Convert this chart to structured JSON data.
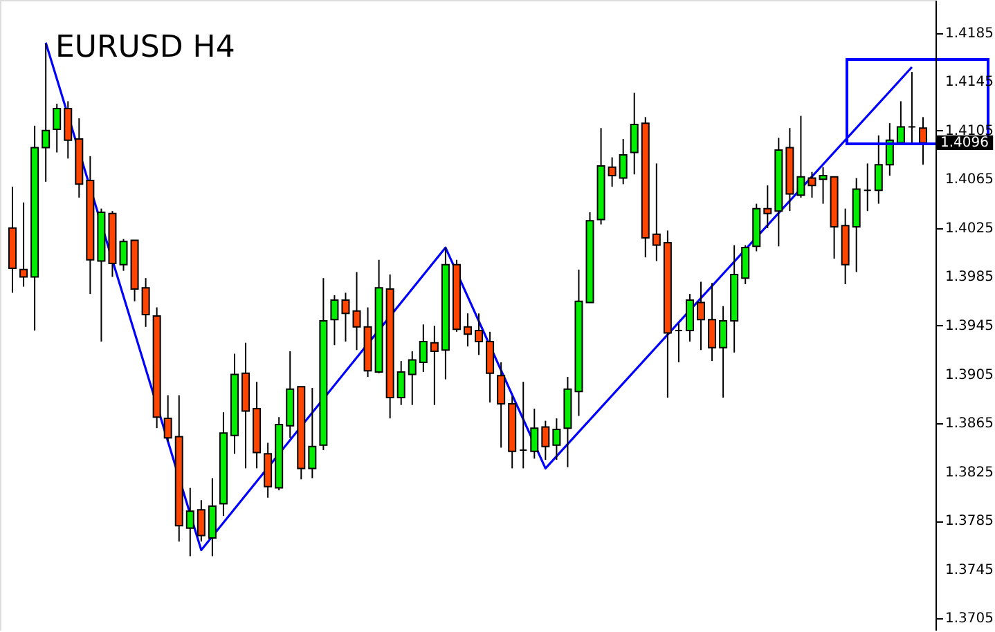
{
  "chart_data": {
    "type": "candlestick",
    "title": "EURUSD H4",
    "categories": [
      null,
      null,
      null,
      null,
      null,
      null,
      null,
      null,
      null,
      null,
      null,
      null,
      null,
      null,
      null,
      null,
      null,
      null,
      null,
      null,
      null,
      null,
      null,
      null,
      null,
      null,
      null,
      null,
      null,
      null,
      null,
      null,
      null,
      null,
      null,
      null,
      null,
      null,
      null,
      null,
      null,
      null,
      null,
      null,
      null,
      null,
      null,
      null,
      null,
      null,
      null,
      null,
      null,
      null,
      null,
      null,
      null,
      null,
      null,
      null,
      null,
      null,
      null,
      null,
      null,
      null,
      null,
      null,
      null,
      null,
      null,
      null,
      null,
      null,
      null,
      null,
      null,
      null,
      null,
      null,
      null,
      null,
      null
    ],
    "ohlc": [
      [
        1.4025,
        1.4059,
        1.3972,
        1.3992
      ],
      [
        1.3991,
        1.4046,
        1.3977,
        1.3985
      ],
      [
        1.3985,
        1.4109,
        1.3941,
        1.4091
      ],
      [
        1.4091,
        1.4176,
        1.4063,
        1.4105
      ],
      [
        1.4106,
        1.4127,
        1.4087,
        1.4123
      ],
      [
        1.4123,
        1.4129,
        1.4082,
        1.4097
      ],
      [
        1.4098,
        1.4115,
        1.405,
        1.4061
      ],
      [
        1.4064,
        1.4084,
        1.3971,
        1.3999
      ],
      [
        1.3998,
        1.4041,
        1.3932,
        1.4038
      ],
      [
        1.4037,
        1.4039,
        1.3985,
        1.3996
      ],
      [
        1.3995,
        1.4016,
        1.399,
        1.4014
      ],
      [
        1.4015,
        1.4015,
        1.3965,
        1.3975
      ],
      [
        1.3976,
        1.3984,
        1.3944,
        1.3954
      ],
      [
        1.3953,
        1.396,
        1.3861,
        1.387
      ],
      [
        1.3869,
        1.3888,
        1.385,
        1.3853
      ],
      [
        1.3854,
        1.3888,
        1.3768,
        1.3781
      ],
      [
        1.3779,
        1.3812,
        1.3756,
        1.3793
      ],
      [
        1.3794,
        1.3802,
        1.3768,
        1.3773
      ],
      [
        1.3771,
        1.382,
        1.3756,
        1.3797
      ],
      [
        1.3799,
        1.3874,
        1.3789,
        1.3857
      ],
      [
        1.3855,
        1.3922,
        1.384,
        1.3905
      ],
      [
        1.3906,
        1.3931,
        1.3828,
        1.3875
      ],
      [
        1.3877,
        1.3899,
        1.3828,
        1.3841
      ],
      [
        1.384,
        1.3849,
        1.3804,
        1.3813
      ],
      [
        1.3812,
        1.387,
        1.381,
        1.3864
      ],
      [
        1.3863,
        1.3924,
        1.3853,
        1.3893
      ],
      [
        1.3895,
        1.3895,
        1.3819,
        1.3828
      ],
      [
        1.3828,
        1.3894,
        1.382,
        1.3846
      ],
      [
        1.3847,
        1.3984,
        1.3843,
        1.3949
      ],
      [
        1.395,
        1.397,
        1.3929,
        1.3966
      ],
      [
        1.3966,
        1.3972,
        1.3932,
        1.3955
      ],
      [
        1.3957,
        1.3989,
        1.3925,
        1.3944
      ],
      [
        1.3944,
        1.396,
        1.3903,
        1.3908
      ],
      [
        1.3907,
        1.3999,
        1.3906,
        1.3976
      ],
      [
        1.3975,
        1.3987,
        1.3869,
        1.3886
      ],
      [
        1.3886,
        1.3916,
        1.388,
        1.3907
      ],
      [
        1.3905,
        1.3924,
        1.388,
        1.3917
      ],
      [
        1.3915,
        1.3946,
        1.3907,
        1.3932
      ],
      [
        1.3931,
        1.3945,
        1.388,
        1.3924
      ],
      [
        1.3925,
        1.4009,
        1.3901,
        1.3995
      ],
      [
        1.3995,
        1.3999,
        1.394,
        1.3942
      ],
      [
        1.3944,
        1.3955,
        1.3928,
        1.3938
      ],
      [
        1.3941,
        1.3955,
        1.3921,
        1.3932
      ],
      [
        1.3932,
        1.394,
        1.3882,
        1.3906
      ],
      [
        1.3904,
        1.3915,
        1.3845,
        1.3881
      ],
      [
        1.3881,
        1.3887,
        1.3828,
        1.3842
      ],
      [
        1.3843,
        1.3899,
        1.3828,
        1.3843
      ],
      [
        1.3842,
        1.3877,
        1.3836,
        1.3861
      ],
      [
        1.3862,
        1.3867,
        1.3835,
        1.3846
      ],
      [
        1.3847,
        1.3869,
        1.3835,
        1.386
      ],
      [
        1.3861,
        1.3903,
        1.3829,
        1.3893
      ],
      [
        1.3891,
        1.3991,
        1.3871,
        1.3965
      ],
      [
        1.3964,
        1.4038,
        1.3964,
        1.4031
      ],
      [
        1.4032,
        1.4107,
        1.4028,
        1.4076
      ],
      [
        1.4075,
        1.4083,
        1.4059,
        1.4068
      ],
      [
        1.4066,
        1.4098,
        1.4061,
        1.4085
      ],
      [
        1.4087,
        1.4136,
        1.4069,
        1.411
      ],
      [
        1.4111,
        1.4116,
        1.4001,
        1.4017
      ],
      [
        1.402,
        1.4078,
        1.3998,
        1.4011
      ],
      [
        1.4013,
        1.4023,
        1.3886,
        1.3939
      ],
      [
        1.3941,
        1.3947,
        1.3915,
        1.3941
      ],
      [
        1.3941,
        1.3971,
        1.3932,
        1.3966
      ],
      [
        1.3964,
        1.3981,
        1.3925,
        1.395
      ],
      [
        1.395,
        1.398,
        1.3916,
        1.3927
      ],
      [
        1.3927,
        1.3961,
        1.3886,
        1.3949
      ],
      [
        1.3949,
        1.4011,
        1.3923,
        1.3987
      ],
      [
        1.3984,
        1.4011,
        1.3979,
        1.4009
      ],
      [
        1.401,
        1.4045,
        1.4006,
        1.4041
      ],
      [
        1.4041,
        1.406,
        1.4025,
        1.4037
      ],
      [
        1.4039,
        1.4099,
        1.401,
        1.4089
      ],
      [
        1.4091,
        1.4107,
        1.4039,
        1.4053
      ],
      [
        1.4052,
        1.4117,
        1.405,
        1.4067
      ],
      [
        1.4066,
        1.4071,
        1.405,
        1.406
      ],
      [
        1.4065,
        1.4075,
        1.4045,
        1.4068
      ],
      [
        1.4067,
        1.4067,
        1.4,
        1.4026
      ],
      [
        1.4027,
        1.4041,
        1.3979,
        1.3995
      ],
      [
        1.4026,
        1.4066,
        1.3989,
        1.4057
      ],
      [
        1.4056,
        1.4078,
        1.4039,
        1.4056
      ],
      [
        1.4056,
        1.4101,
        1.4045,
        1.4077
      ],
      [
        1.4077,
        1.4111,
        1.4068,
        1.4097
      ],
      [
        1.4095,
        1.4129,
        1.4095,
        1.4108
      ],
      [
        1.4108,
        1.4153,
        1.4094,
        1.4108
      ],
      [
        1.4107,
        1.4116,
        1.4077,
        1.4095
      ]
    ],
    "colors": [
      "#ff4500",
      "#ff4500",
      "#00ee00",
      "#00ee00",
      "#00ee00",
      "#ff4500",
      "#ff4500",
      "#ff4500",
      "#00ee00",
      "#ff4500",
      "#00ee00",
      "#ff4500",
      "#ff4500",
      "#ff4500",
      "#ff4500",
      "#ff4500",
      "#00ee00",
      "#ff4500",
      "#00ee00",
      "#00ee00",
      "#00ee00",
      "#ff4500",
      "#ff4500",
      "#ff4500",
      "#00ee00",
      "#00ee00",
      "#ff4500",
      "#00ee00",
      "#00ee00",
      "#00ee00",
      "#ff4500",
      "#ff4500",
      "#ff4500",
      "#00ee00",
      "#ff4500",
      "#00ee00",
      "#00ee00",
      "#00ee00",
      "#ff4500",
      "#00ee00",
      "#ff4500",
      "#ff4500",
      "#ff4500",
      "#ff4500",
      "#ff4500",
      "#ff4500",
      "#000000",
      "#00ee00",
      "#ff4500",
      "#00ee00",
      "#00ee00",
      "#00ee00",
      "#00ee00",
      "#00ee00",
      "#ff4500",
      "#00ee00",
      "#00ee00",
      "#ff4500",
      "#ff4500",
      "#ff4500",
      "#000000",
      "#00ee00",
      "#ff4500",
      "#ff4500",
      "#00ee00",
      "#00ee00",
      "#00ee00",
      "#00ee00",
      "#ff4500",
      "#00ee00",
      "#ff4500",
      "#00ee00",
      "#ff4500",
      "#00ee00",
      "#ff4500",
      "#ff4500",
      "#00ee00",
      "#000000",
      "#00ee00",
      "#00ee00",
      "#00ee00",
      "#000000",
      "#ff4500"
    ],
    "series": [
      {
        "type": "line",
        "color": "#0000ff",
        "values": [
          null,
          null,
          null,
          1.4177,
          null,
          null,
          null,
          null,
          null,
          null,
          null,
          null,
          null,
          null,
          null,
          null,
          null,
          1.3761,
          null,
          null,
          null,
          null,
          null,
          null,
          null,
          null,
          null,
          null,
          null,
          null,
          null,
          null,
          null,
          null,
          null,
          null,
          null,
          null,
          null,
          1.4009,
          null,
          null,
          null,
          null,
          null,
          null,
          null,
          null,
          1.3828,
          null,
          null,
          null,
          null,
          null,
          null,
          null,
          null,
          null,
          null,
          null,
          null,
          null,
          null,
          null,
          null,
          null,
          null,
          null,
          null,
          null,
          null,
          null,
          null,
          null,
          null,
          null,
          null,
          null,
          null,
          null,
          null,
          1.4157,
          null
        ]
      }
    ],
    "ylim": [
      1.3695,
      1.4212
    ],
    "yticks": [
      1.4185,
      1.4145,
      1.4105,
      1.4065,
      1.4025,
      1.3985,
      1.3945,
      1.3905,
      1.3865,
      1.3825,
      1.3785,
      1.3745,
      1.3705
    ],
    "annotations": [
      "1.4096"
    ],
    "tick_labels": "y",
    "grid": false
  }
}
